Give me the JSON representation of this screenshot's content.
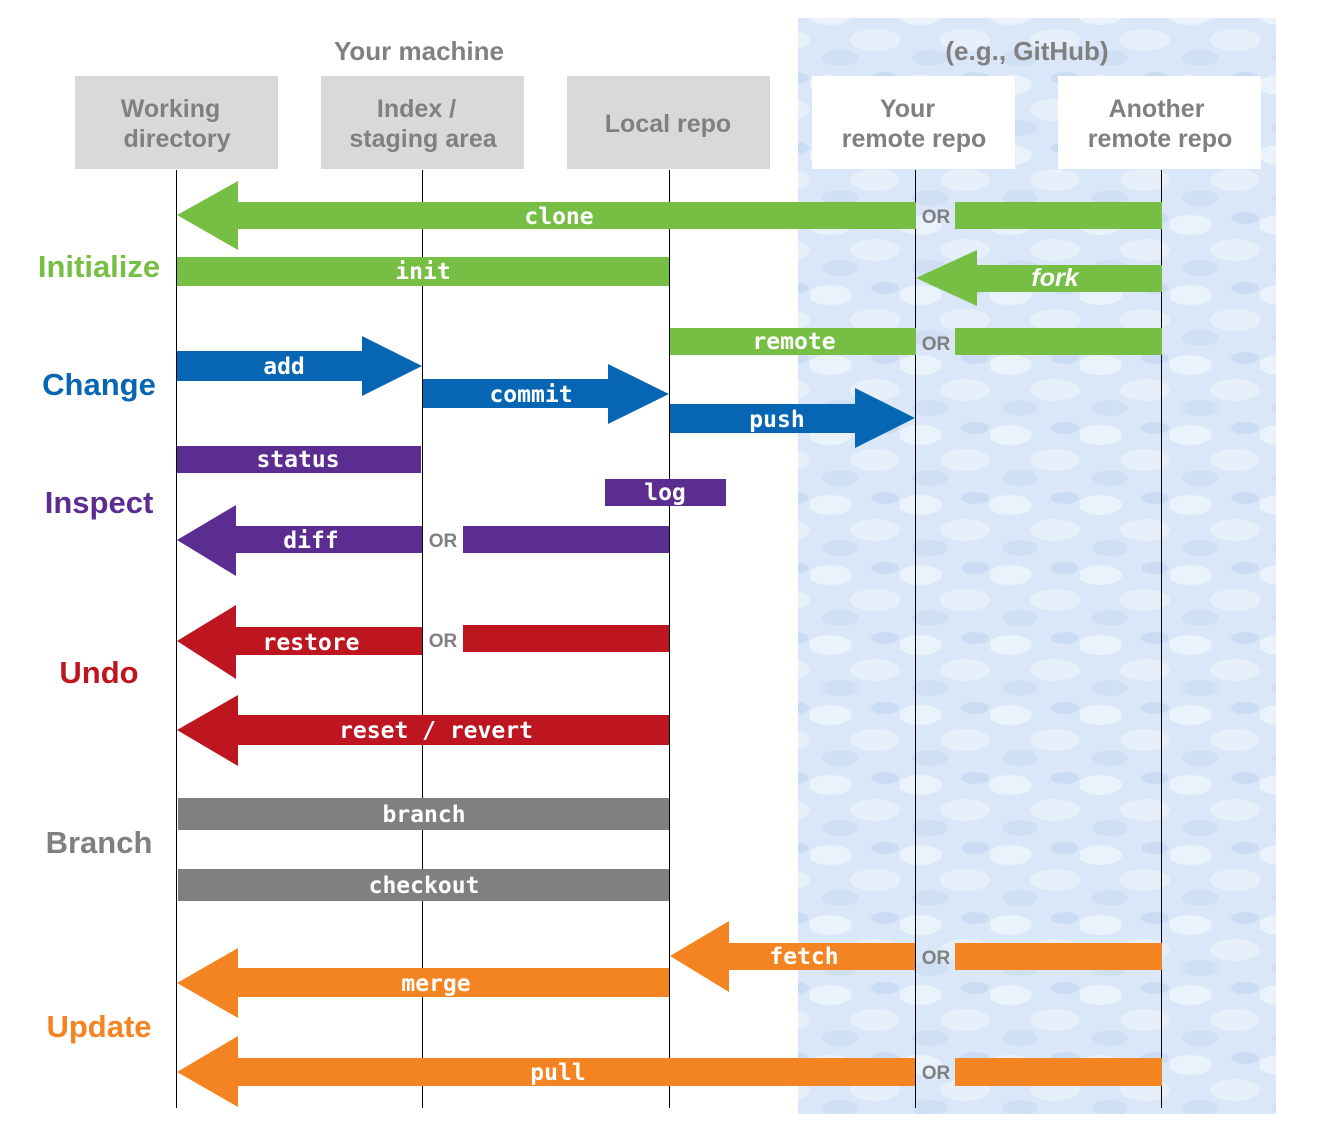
{
  "header": {
    "your_machine": "Your machine",
    "remote_host": "(e.g., GitHub)"
  },
  "columns": {
    "working_dir": [
      "Working",
      "directory"
    ],
    "index": [
      "Index /",
      "staging area"
    ],
    "local_repo": "Local repo",
    "your_remote": [
      "Your",
      "remote repo"
    ],
    "another_remote": [
      "Another",
      "remote repo"
    ]
  },
  "categories": {
    "initialize": "Initialize",
    "change": "Change",
    "inspect": "Inspect",
    "undo": "Undo",
    "branch": "Branch",
    "update": "Update"
  },
  "commands": {
    "clone": "clone",
    "init": "init",
    "fork": "fork",
    "remote": "remote",
    "add": "add",
    "commit": "commit",
    "push": "push",
    "status": "status",
    "log": "log",
    "diff": "diff",
    "restore": "restore",
    "reset_revert": "reset / revert",
    "branch": "branch",
    "checkout": "checkout",
    "fetch": "fetch",
    "merge": "merge",
    "pull": "pull"
  },
  "or_label": "OR",
  "colors": {
    "initialize": "#76bf44",
    "change": "#0766b3",
    "inspect": "#5c2d91",
    "undo": "#be1620",
    "branch": "#808080",
    "update": "#f48421",
    "column_box": "#d9d9d9",
    "remote_area": "#dce9f7"
  }
}
